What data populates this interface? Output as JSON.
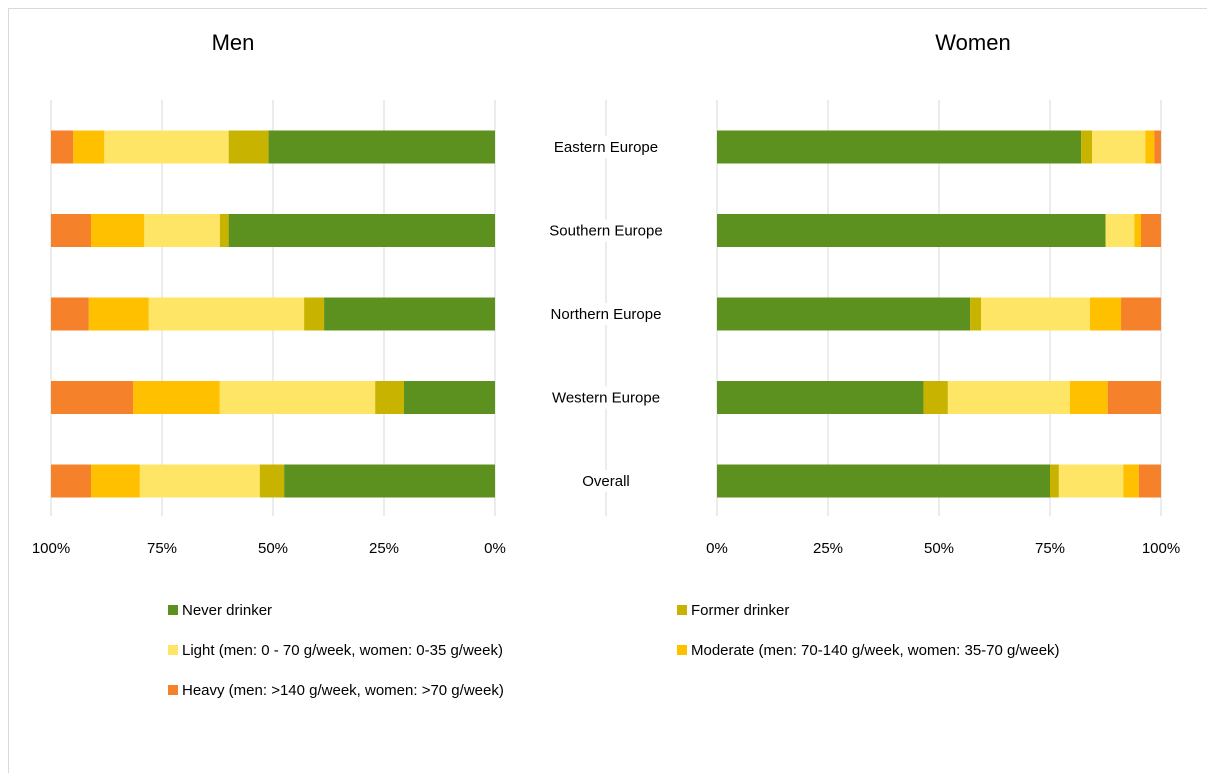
{
  "chart_data": {
    "type": "bar",
    "orientation": "horizontal",
    "stacked": true,
    "percent_stacked": true,
    "categories": [
      "Eastern Europe",
      "Southern Europe",
      "Northern Europe",
      "Western Europe",
      "Overall"
    ],
    "panels": [
      {
        "title": "Men",
        "direction": "right-to-left",
        "xlim": [
          0,
          100
        ],
        "ticks": [
          "100%",
          "75%",
          "50%",
          "25%",
          "0%"
        ],
        "series": [
          {
            "name": "Never drinker",
            "color": "#5c9120",
            "values": [
              51,
              60,
              38.5,
              20.5,
              47.5
            ]
          },
          {
            "name": "Former drinker",
            "color": "#c8b400",
            "values": [
              9,
              2,
              4.5,
              6.5,
              5.5
            ]
          },
          {
            "name": "Light (men: 0 - 70 g/week, women: 0-35 g/week)",
            "color": "#ffe566",
            "values": [
              28,
              17,
              35,
              35,
              27
            ]
          },
          {
            "name": "Moderate (men: 70-140 g/week, women: 35-70 g/week)",
            "color": "#ffc000",
            "values": [
              7,
              12,
              13.5,
              19.5,
              11
            ]
          },
          {
            "name": "Heavy (men: >140 g/week, women: >70 g/week)",
            "color": "#f5822a",
            "values": [
              5,
              9,
              8.5,
              18.5,
              9
            ]
          }
        ]
      },
      {
        "title": "Women",
        "direction": "left-to-right",
        "xlim": [
          0,
          100
        ],
        "ticks": [
          "0%",
          "25%",
          "50%",
          "75%",
          "100%"
        ],
        "series": [
          {
            "name": "Never drinker",
            "color": "#5c9120",
            "values": [
              82,
              87.5,
              57,
              46.5,
              75
            ]
          },
          {
            "name": "Former drinker",
            "color": "#c8b400",
            "values": [
              2.5,
              0,
              2.5,
              5.5,
              2
            ]
          },
          {
            "name": "Light (men: 0 - 70 g/week, women: 0-35 g/week)",
            "color": "#ffe566",
            "values": [
              12,
              6.5,
              24.5,
              27.5,
              14.5
            ]
          },
          {
            "name": "Moderate (men: 70-140 g/week, women: 35-70 g/week)",
            "color": "#ffc000",
            "values": [
              2,
              1.5,
              7,
              8.5,
              3.5
            ]
          },
          {
            "name": "Heavy (men: >140 g/week, women: >70 g/week)",
            "color": "#f5822a",
            "values": [
              1.5,
              4.5,
              9,
              12,
              5
            ]
          }
        ]
      }
    ],
    "legend": {
      "placement": "bottom",
      "items": [
        {
          "name": "Never drinker",
          "color": "#5c9120"
        },
        {
          "name": "Former drinker",
          "color": "#c8b400"
        },
        {
          "name": "Light (men: 0 - 70 g/week, women: 0-35 g/week)",
          "color": "#ffe566"
        },
        {
          "name": "Moderate (men: 70-140 g/week, women: 35-70 g/week)",
          "color": "#ffc000"
        },
        {
          "name": "Heavy (men: >140 g/week, women: >70 g/week)",
          "color": "#f5822a"
        }
      ]
    },
    "grid": true
  }
}
